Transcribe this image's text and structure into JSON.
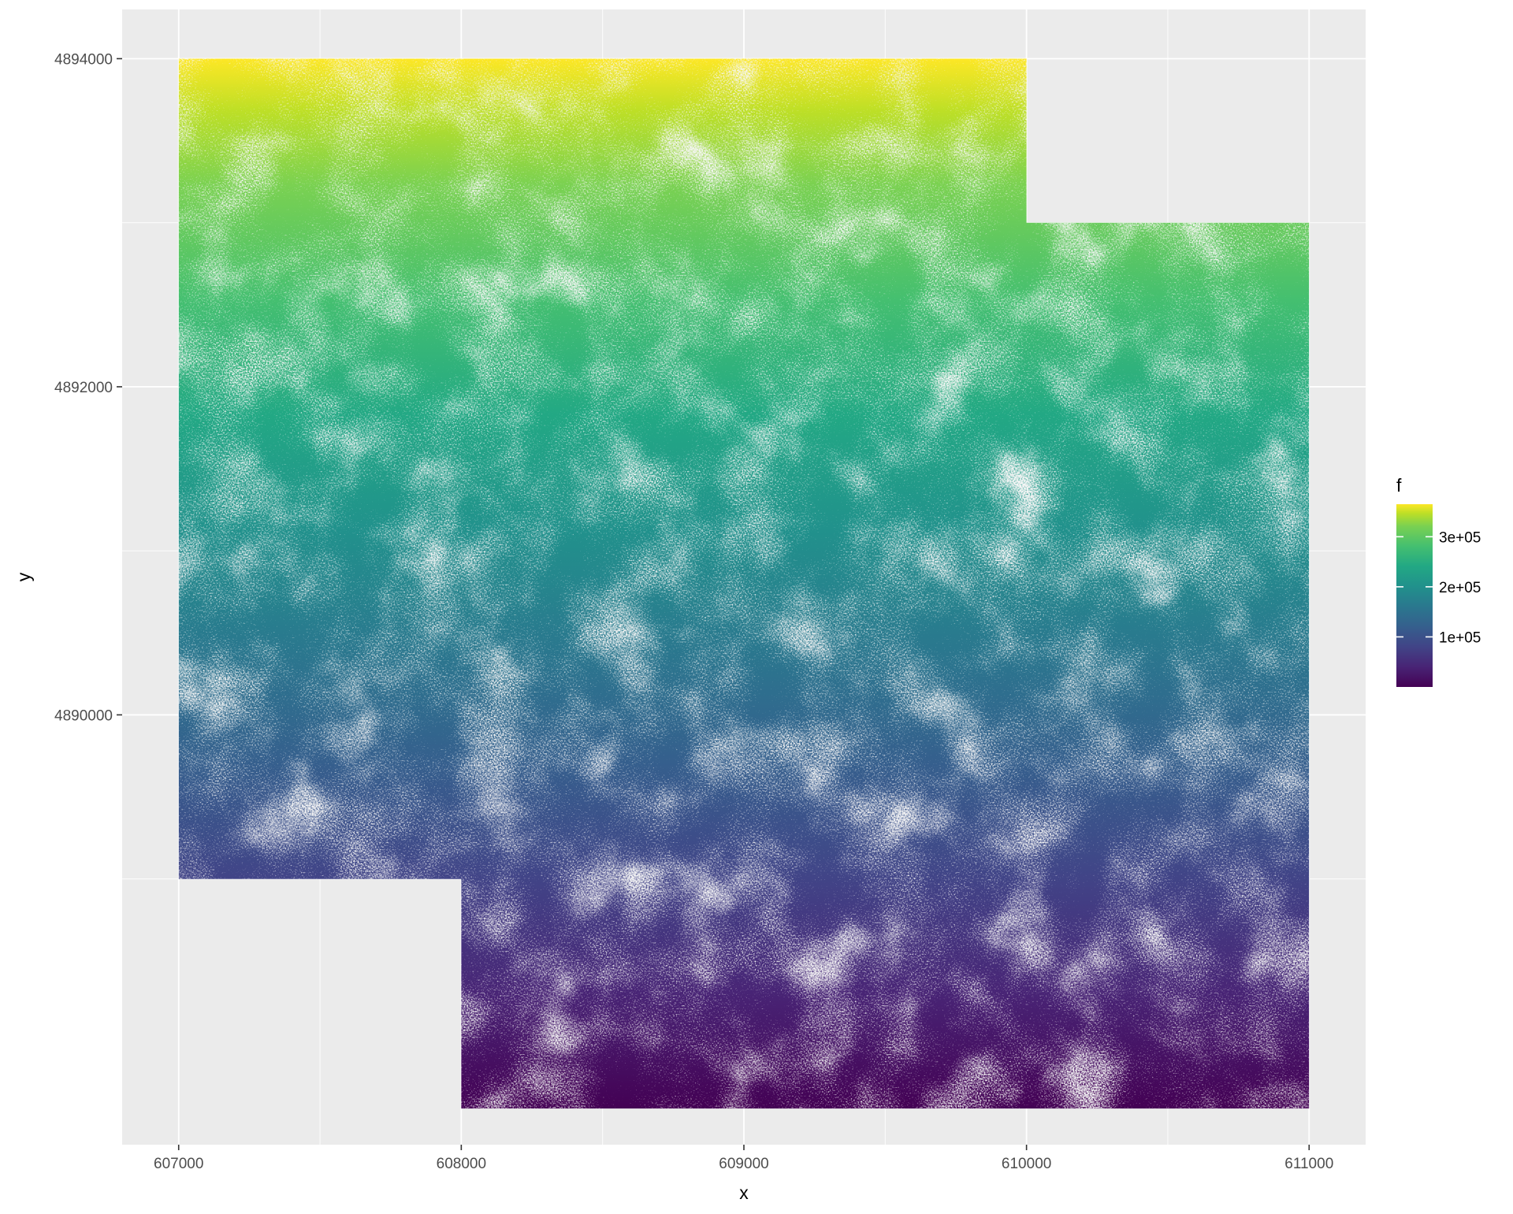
{
  "chart_data": {
    "type": "heatmap",
    "title": "",
    "xlabel": "x",
    "ylabel": "y",
    "xlim": [
      606800,
      611200
    ],
    "ylim": [
      4887380,
      4894300
    ],
    "x_ticks": [
      607000,
      608000,
      609000,
      610000,
      611000
    ],
    "x_tick_labels": [
      "607000",
      "608000",
      "609000",
      "610000",
      "611000"
    ],
    "y_ticks": [
      4890000,
      4892000,
      4894000
    ],
    "y_tick_labels": [
      "4890000",
      "4892000",
      "4894000"
    ],
    "grid": true,
    "fill_variable": "f",
    "colormap": "viridis",
    "color_range": [
      0,
      365000
    ],
    "colorbar_ticks": [
      100000,
      200000,
      300000
    ],
    "colorbar_tick_labels": [
      "1e+05",
      "2e+05",
      "3e+05"
    ],
    "legend_position": "right",
    "panel_background": "#ebebeb",
    "raster_extent": [
      {
        "x": [
          607000,
          610000
        ],
        "y": [
          4893000,
          4894000
        ]
      },
      {
        "x": [
          607000,
          611000
        ],
        "y": [
          4889000,
          4893000
        ]
      },
      {
        "x": [
          608000,
          611000
        ],
        "y": [
          4887600,
          4889000
        ]
      }
    ]
  }
}
